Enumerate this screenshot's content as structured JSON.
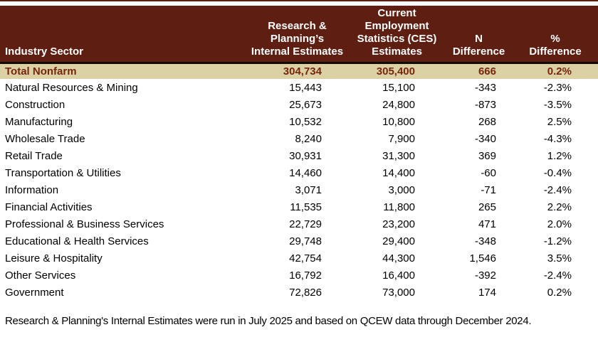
{
  "page": {
    "footnote": "Research & Planning's Internal Estimates were run in July 2025 and based on QCEW data through December 2024."
  },
  "colors": {
    "header_bg": "#5e1f12",
    "header_text": "#ffffff",
    "separator": "#130b05",
    "total_row_bg": "#dbd1a5",
    "total_row_text": "#76250f",
    "body_text": "#000000",
    "top_rule": "#5e1f12",
    "page_bg": "#ffffff"
  },
  "table": {
    "columns": [
      {
        "id": "sector",
        "label": "Industry Sector"
      },
      {
        "id": "internal",
        "label": "Research &\nPlanning’s\nInternal Estimates"
      },
      {
        "id": "ces",
        "label": "Current\nEmployment\nStatistics (CES)\nEstimates"
      },
      {
        "id": "n_diff",
        "label": "N\nDifference"
      },
      {
        "id": "pct_diff",
        "label": "%\nDifference"
      }
    ],
    "total_row": {
      "sector": "Total Nonfarm",
      "internal": "304,734",
      "ces": "305,400",
      "n_diff": "666",
      "pct_diff": "0.2%"
    },
    "rows": [
      {
        "sector": "Natural Resources & Mining",
        "internal": "15,443",
        "ces": "15,100",
        "n_diff": "-343",
        "pct_diff": "-2.3%"
      },
      {
        "sector": "Construction",
        "internal": "25,673",
        "ces": "24,800",
        "n_diff": "-873",
        "pct_diff": "-3.5%"
      },
      {
        "sector": "Manufacturing",
        "internal": "10,532",
        "ces": "10,800",
        "n_diff": "268",
        "pct_diff": "2.5%"
      },
      {
        "sector": "Wholesale Trade",
        "internal": "8,240",
        "ces": "7,900",
        "n_diff": "-340",
        "pct_diff": "-4.3%"
      },
      {
        "sector": "Retail Trade",
        "internal": "30,931",
        "ces": "31,300",
        "n_diff": "369",
        "pct_diff": "1.2%"
      },
      {
        "sector": "Transportation & Utilities",
        "internal": "14,460",
        "ces": "14,400",
        "n_diff": "-60",
        "pct_diff": "-0.4%"
      },
      {
        "sector": "Information",
        "internal": "3,071",
        "ces": "3,000",
        "n_diff": "-71",
        "pct_diff": "-2.4%"
      },
      {
        "sector": "Financial Activities",
        "internal": "11,535",
        "ces": "11,800",
        "n_diff": "265",
        "pct_diff": "2.2%"
      },
      {
        "sector": "Professional & Business Services",
        "internal": "22,729",
        "ces": "23,200",
        "n_diff": "471",
        "pct_diff": "2.0%"
      },
      {
        "sector": "Educational & Health Services",
        "internal": "29,748",
        "ces": "29,400",
        "n_diff": "-348",
        "pct_diff": "-1.2%"
      },
      {
        "sector": "Leisure & Hospitality",
        "internal": "42,754",
        "ces": "44,300",
        "n_diff": "1,546",
        "pct_diff": "3.5%"
      },
      {
        "sector": "Other Services",
        "internal": "16,792",
        "ces": "16,400",
        "n_diff": "-392",
        "pct_diff": "-2.4%"
      },
      {
        "sector": "Government",
        "internal": "72,826",
        "ces": "73,000",
        "n_diff": "174",
        "pct_diff": "0.2%"
      }
    ]
  },
  "chart_data": {
    "type": "table",
    "columns": [
      "Industry Sector",
      "Research & Planning's Internal Estimates",
      "Current Employment Statistics (CES) Estimates",
      "N Difference",
      "% Difference"
    ],
    "rows": [
      [
        "Total Nonfarm",
        304734,
        305400,
        666,
        0.2
      ],
      [
        "Natural Resources & Mining",
        15443,
        15100,
        -343,
        -2.3
      ],
      [
        "Construction",
        25673,
        24800,
        -873,
        -3.5
      ],
      [
        "Manufacturing",
        10532,
        10800,
        268,
        2.5
      ],
      [
        "Wholesale Trade",
        8240,
        7900,
        -340,
        -4.3
      ],
      [
        "Retail Trade",
        30931,
        31300,
        369,
        1.2
      ],
      [
        "Transportation & Utilities",
        14460,
        14400,
        -60,
        -0.4
      ],
      [
        "Information",
        3071,
        3000,
        -71,
        -2.4
      ],
      [
        "Financial Activities",
        11535,
        11800,
        265,
        2.2
      ],
      [
        "Professional & Business Services",
        22729,
        23200,
        471,
        2.0
      ],
      [
        "Educational & Health Services",
        29748,
        29400,
        -348,
        -1.2
      ],
      [
        "Leisure & Hospitality",
        42754,
        44300,
        1546,
        3.5
      ],
      [
        "Other Services",
        16792,
        16400,
        -392,
        -2.4
      ],
      [
        "Government",
        72826,
        73000,
        174,
        0.2
      ]
    ],
    "percent_difference_unit": "%",
    "footnote": "Research & Planning's Internal Estimates were run in July 2025 and based on QCEW data through December 2024."
  }
}
